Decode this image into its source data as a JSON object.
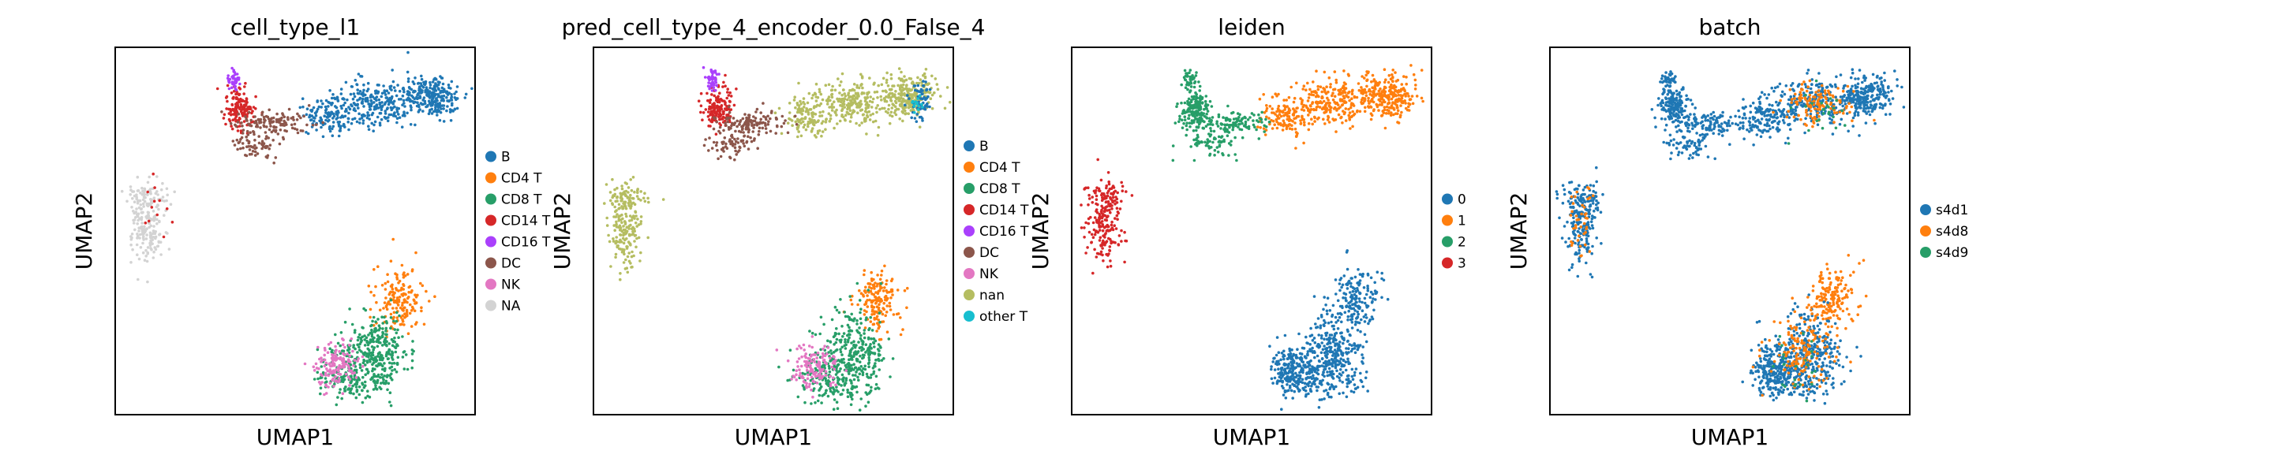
{
  "chart_data": [
    {
      "type": "scatter",
      "title": "cell_type_l1",
      "xlabel": "UMAP1",
      "ylabel": "UMAP2",
      "legend": "right",
      "colors_by": "category",
      "categories": [
        {
          "label": "B",
          "color": "#1f77b4"
        },
        {
          "label": "CD4 T",
          "color": "#ff7f0e"
        },
        {
          "label": "CD8 T",
          "color": "#279e68"
        },
        {
          "label": "CD14 T",
          "color": "#d62728"
        },
        {
          "label": "CD16 T",
          "color": "#aa40fc"
        },
        {
          "label": "DC",
          "color": "#8c564b"
        },
        {
          "label": "NK",
          "color": "#e377c2"
        },
        {
          "label": "NA",
          "color": "#d3d3d3"
        }
      ]
    },
    {
      "type": "scatter",
      "title": "pred_cell_type_4_encoder_0.0_False_4",
      "xlabel": "UMAP1",
      "ylabel": "UMAP2",
      "legend": "right",
      "colors_by": "category",
      "categories": [
        {
          "label": "B",
          "color": "#1f77b4"
        },
        {
          "label": "CD4 T",
          "color": "#ff7f0e"
        },
        {
          "label": "CD8 T",
          "color": "#279e68"
        },
        {
          "label": "CD14 T",
          "color": "#d62728"
        },
        {
          "label": "CD16 T",
          "color": "#aa40fc"
        },
        {
          "label": "DC",
          "color": "#8c564b"
        },
        {
          "label": "NK",
          "color": "#e377c2"
        },
        {
          "label": "nan",
          "color": "#b5bd61"
        },
        {
          "label": "other T",
          "color": "#17becf"
        }
      ]
    },
    {
      "type": "scatter",
      "title": "leiden",
      "xlabel": "UMAP1",
      "ylabel": "UMAP2",
      "legend": "right",
      "colors_by": "category",
      "categories": [
        {
          "label": "0",
          "color": "#1f77b4"
        },
        {
          "label": "1",
          "color": "#ff7f0e"
        },
        {
          "label": "2",
          "color": "#279e68"
        },
        {
          "label": "3",
          "color": "#d62728"
        }
      ]
    },
    {
      "type": "scatter",
      "title": "batch",
      "xlabel": "UMAP1",
      "ylabel": "UMAP2",
      "legend": "right",
      "colors_by": "category",
      "categories": [
        {
          "label": "s4d1",
          "color": "#1f77b4"
        },
        {
          "label": "s4d8",
          "color": "#ff7f0e"
        },
        {
          "label": "s4d9",
          "color": "#279e68"
        }
      ]
    }
  ]
}
